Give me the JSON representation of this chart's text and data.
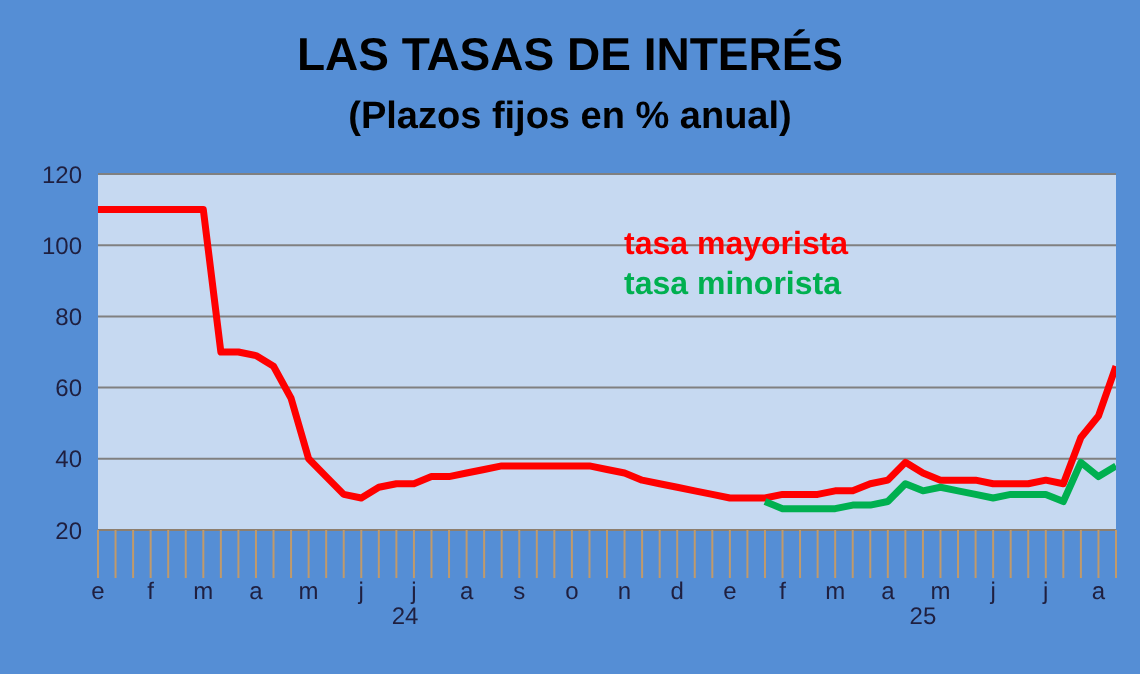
{
  "chart_data": {
    "type": "line",
    "title": "LAS TASAS DE INTERÉS",
    "subtitle": "(Plazos fijos en % anual)",
    "categories": [
      "e",
      null,
      null,
      "f",
      null,
      null,
      "m",
      null,
      null,
      "a",
      null,
      null,
      "m",
      null,
      null,
      "j",
      null,
      null,
      "j",
      null,
      null,
      "a",
      null,
      null,
      "s",
      null,
      null,
      "o",
      null,
      null,
      "n",
      null,
      null,
      "d",
      null,
      null,
      "e",
      null,
      null,
      "f",
      null,
      null,
      "m",
      null,
      null,
      "a",
      null,
      null,
      "m",
      null,
      null,
      "j",
      null,
      null,
      "j",
      null,
      null,
      "a",
      null
    ],
    "series": [
      {
        "name": "tasa mayorista",
        "color": "#ff0000",
        "values": [
          110,
          110,
          110,
          110,
          110,
          110,
          110,
          70,
          70,
          69,
          66,
          57,
          40,
          35,
          30,
          29,
          32,
          33,
          33,
          35,
          35,
          36,
          37,
          38,
          38,
          38,
          38,
          38,
          38,
          37,
          36,
          34,
          33,
          32,
          31,
          30,
          29,
          29,
          29,
          30,
          30,
          30,
          31,
          31,
          33,
          34,
          39,
          36,
          34,
          34,
          34,
          33,
          33,
          33,
          34,
          33,
          46,
          52,
          66
        ]
      },
      {
        "name": "tasa minorista",
        "color": "#00b050",
        "values": [
          null,
          null,
          null,
          null,
          null,
          null,
          null,
          null,
          null,
          null,
          null,
          null,
          null,
          null,
          null,
          null,
          null,
          null,
          null,
          null,
          null,
          null,
          null,
          null,
          null,
          null,
          null,
          null,
          null,
          null,
          null,
          null,
          null,
          null,
          null,
          null,
          null,
          null,
          28,
          26,
          26,
          26,
          26,
          27,
          27,
          28,
          33,
          31,
          32,
          31,
          30,
          29,
          30,
          30,
          30,
          28,
          39,
          35,
          38
        ]
      }
    ],
    "annotations": [
      "24",
      "25"
    ],
    "ylim": [
      20,
      120
    ],
    "yticks": [
      20,
      40,
      60,
      80,
      100,
      120
    ],
    "grid": "y",
    "legend": "top right",
    "marker": "none",
    "line_style": "solid"
  }
}
